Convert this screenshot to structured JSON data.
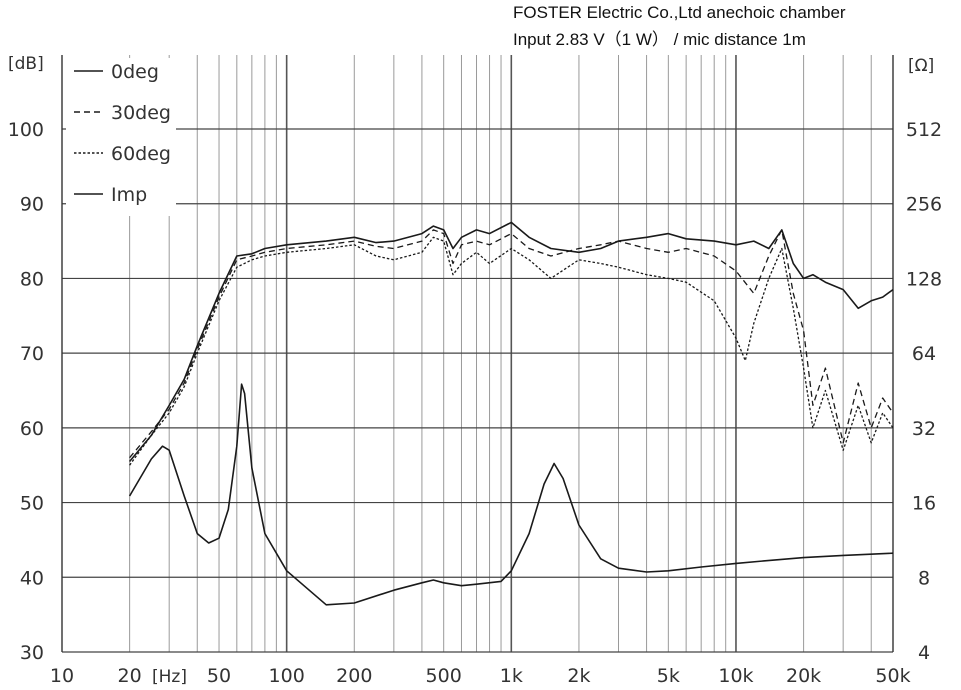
{
  "header": {
    "line1": "FOSTER Electric Co.,Ltd  anechoic chamber",
    "line2": "Input 2.83 V（1 W） / mic distance 1m"
  },
  "chart_data": {
    "type": "line",
    "x_scale": "log",
    "xlim": [
      10,
      50000
    ],
    "x_ticks": [
      {
        "v": 10,
        "label": "10"
      },
      {
        "v": 20,
        "label": "20"
      },
      {
        "v": 50,
        "label": "50"
      },
      {
        "v": 100,
        "label": "100"
      },
      {
        "v": 200,
        "label": "200"
      },
      {
        "v": 500,
        "label": "500"
      },
      {
        "v": 1000,
        "label": "1k"
      },
      {
        "v": 2000,
        "label": "2k"
      },
      {
        "v": 5000,
        "label": "5k"
      },
      {
        "v": 10000,
        "label": "10k"
      },
      {
        "v": 20000,
        "label": "20k"
      },
      {
        "v": 50000,
        "label": "50k"
      }
    ],
    "x_unit_label": "[Hz]",
    "ylabel_left": "[dB]",
    "ylim": [
      30,
      100
    ],
    "y_ticks": [
      30,
      40,
      50,
      60,
      70,
      80,
      90,
      100
    ],
    "ylabel_right": "[Ω]",
    "y2_scale": "log2",
    "y2lim": [
      4,
      512
    ],
    "y2_ticks": [
      4,
      8,
      16,
      32,
      64,
      128,
      256,
      512
    ],
    "grid": true,
    "legend_position": "top-left",
    "series": [
      {
        "name": "0deg",
        "axis": "left",
        "dash": "solid",
        "x": [
          20,
          25,
          30,
          35,
          40,
          50,
          60,
          70,
          80,
          100,
          150,
          200,
          250,
          300,
          400,
          450,
          500,
          550,
          600,
          700,
          800,
          1000,
          1200,
          1500,
          2000,
          2500,
          3000,
          4000,
          5000,
          6000,
          8000,
          10000,
          12000,
          14000,
          16000,
          18000,
          20000,
          22000,
          25000,
          30000,
          35000,
          40000,
          45000,
          50000
        ],
        "y": [
          55.5,
          59,
          63,
          66.5,
          71,
          78,
          83,
          83.3,
          84,
          84.5,
          85,
          85.5,
          84.8,
          85,
          86,
          87,
          86.5,
          84,
          85.5,
          86.5,
          86,
          87.5,
          85.5,
          84,
          83.5,
          84,
          85,
          85.5,
          86,
          85.3,
          85,
          84.5,
          85,
          84,
          86.5,
          82,
          80,
          80.5,
          79.5,
          78.5,
          76,
          77,
          77.5,
          78.5
        ]
      },
      {
        "name": "30deg",
        "axis": "left",
        "dash": "dashed",
        "x": [
          20,
          25,
          30,
          35,
          40,
          50,
          60,
          70,
          80,
          100,
          150,
          200,
          250,
          300,
          400,
          450,
          500,
          550,
          600,
          700,
          800,
          1000,
          1200,
          1500,
          2000,
          2500,
          3000,
          4000,
          5000,
          6000,
          8000,
          10000,
          12000,
          14000,
          16000,
          18000,
          20000,
          22000,
          25000,
          30000,
          35000,
          40000,
          45000,
          50000
        ],
        "y": [
          56,
          59.5,
          62.5,
          66,
          70.5,
          77.5,
          82.5,
          83,
          83.5,
          84,
          84.5,
          85,
          84.3,
          84,
          85,
          86.5,
          86,
          82,
          84.5,
          85,
          84.5,
          86,
          84,
          83,
          84,
          84.5,
          85,
          84,
          83.5,
          84,
          83,
          81,
          78,
          83,
          86.5,
          78,
          73,
          63,
          68,
          58,
          66,
          60,
          64,
          62
        ]
      },
      {
        "name": "60deg",
        "axis": "left",
        "dash": "dotted",
        "x": [
          20,
          25,
          30,
          35,
          40,
          50,
          60,
          70,
          80,
          100,
          150,
          200,
          250,
          300,
          400,
          450,
          500,
          550,
          600,
          700,
          800,
          1000,
          1200,
          1500,
          2000,
          2500,
          3000,
          4000,
          5000,
          6000,
          8000,
          10000,
          11000,
          12000,
          14000,
          16000,
          18000,
          20000,
          22000,
          25000,
          30000,
          35000,
          40000,
          45000,
          50000
        ],
        "y": [
          55,
          59,
          62,
          65.5,
          70,
          77,
          81.5,
          82.5,
          83,
          83.5,
          84,
          84.5,
          83,
          82.5,
          83.5,
          85.5,
          85,
          80.5,
          82,
          83.5,
          82,
          84,
          82.5,
          80,
          82.5,
          82,
          81.5,
          80.5,
          80,
          79.5,
          77,
          72,
          69,
          74,
          80,
          84,
          76,
          68,
          60,
          65,
          57,
          63,
          58,
          62,
          60
        ]
      },
      {
        "name": "Imp",
        "axis": "right",
        "dash": "solid",
        "x": [
          20,
          25,
          28,
          30,
          35,
          40,
          45,
          50,
          55,
          60,
          63,
          65,
          70,
          80,
          100,
          150,
          200,
          300,
          400,
          450,
          500,
          600,
          700,
          900,
          1000,
          1200,
          1400,
          1550,
          1700,
          2000,
          2500,
          3000,
          4000,
          5000,
          7000,
          10000,
          15000,
          20000,
          30000,
          50000
        ],
        "y": [
          17,
          24,
          27,
          26,
          17,
          12,
          11,
          11.5,
          15,
          27,
          48,
          44,
          22,
          12,
          8.5,
          6.2,
          6.3,
          7.1,
          7.6,
          7.8,
          7.6,
          7.4,
          7.5,
          7.7,
          8.5,
          12,
          19,
          23,
          20,
          13,
          9.5,
          8.7,
          8.4,
          8.5,
          8.8,
          9.1,
          9.4,
          9.6,
          9.8,
          10
        ]
      }
    ]
  }
}
